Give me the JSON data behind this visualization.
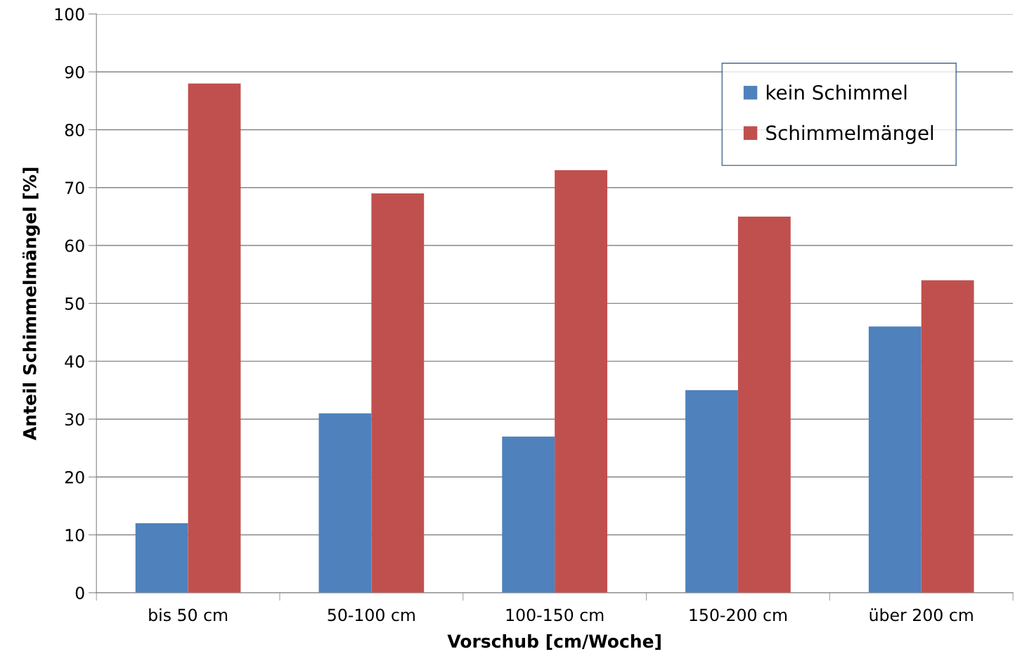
{
  "chart_data": {
    "type": "bar",
    "xlabel": "Vorschub [cm/Woche]",
    "ylabel": "Anteil Schimmelmängel [%]",
    "categories": [
      "bis 50 cm",
      "50-100 cm",
      "100-150 cm",
      "150-200 cm",
      "über 200 cm"
    ],
    "series": [
      {
        "name": "kein Schimmel",
        "color": "#4f81bd",
        "values": [
          12,
          31,
          27,
          35,
          46
        ]
      },
      {
        "name": "Schimmelmängel",
        "color": "#c0504d",
        "values": [
          88,
          69,
          73,
          65,
          54
        ]
      }
    ],
    "ylim": [
      0,
      100
    ],
    "yticks": [
      0,
      10,
      20,
      30,
      40,
      50,
      60,
      70,
      80,
      90,
      100
    ],
    "grid": "y",
    "legend": "top right"
  }
}
